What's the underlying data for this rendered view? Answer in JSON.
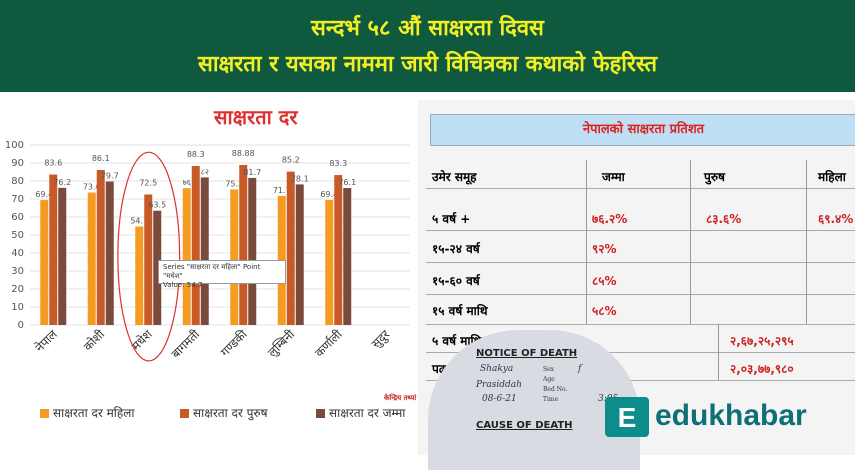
{
  "banner": {
    "line1": "सन्दर्भ ५८ औं साक्षरता दिवस",
    "line2": "साक्षरता र यसका नाममा जारी विचित्रका कथाको फेहरिस्त"
  },
  "chart_data": {
    "type": "bar",
    "title": "साक्षरता  दर",
    "categories": [
      "नेपाल",
      "कोशी",
      "मधेश",
      "बागमती",
      "गण्डकी",
      "लुम्बिनी",
      "कर्णाली",
      "सुदुर"
    ],
    "ylim": [
      0,
      100
    ],
    "yticks": [
      0,
      10,
      20,
      30,
      40,
      50,
      60,
      70,
      80,
      90,
      100
    ],
    "series": [
      {
        "name": "साक्षरता दर महिला",
        "color": "#f59b22",
        "values": [
          69.4,
          73.6,
          54.7,
          76,
          75.3,
          71.7,
          69.4,
          null
        ]
      },
      {
        "name": "साक्षरता दर पुरुष",
        "color": "#c85a28",
        "values": [
          83.6,
          86.1,
          72.5,
          88.3,
          88.88,
          85.2,
          83.3,
          null
        ]
      },
      {
        "name": "साक्षरता दर जम्मा",
        "color": "#7a4a3c",
        "values": [
          76.2,
          79.7,
          63.5,
          82,
          81.7,
          78.1,
          76.1,
          null
        ]
      }
    ],
    "data_labels": [
      [
        "69.4",
        "83.6",
        "76.2"
      ],
      [
        "73.6",
        "86.1",
        "79.7"
      ],
      [
        "54.7",
        "72.5",
        "63.5"
      ],
      [
        "७६",
        "88.3",
        "८२"
      ],
      [
        "75.3",
        "88.88",
        "81.7"
      ],
      [
        "71.7",
        "85.2",
        "78.1"
      ],
      [
        "69.4",
        "83.3",
        "76.1"
      ],
      [
        "",
        "",
        ""
      ]
    ],
    "tooltip": {
      "line1": "Series \"साक्षरता दर महिला\" Point \"मधेश\"",
      "line2": "Value: 54.7"
    },
    "legend": "bottom"
  },
  "table": {
    "title": "नेपालको साक्षरता प्रतिशत",
    "headers": [
      "उमेर समूह",
      "जम्मा",
      "पुरुष",
      "महिला"
    ],
    "rows": [
      [
        "५ वर्ष +",
        "७६.२%",
        "८३.६%",
        "६९.४%"
      ],
      [
        "१५-२४ वर्ष",
        "९२%",
        "",
        ""
      ],
      [
        "१५-६० वर्ष",
        "८५%",
        "",
        ""
      ],
      [
        "१५ वर्ष माथि",
        "५८%",
        "",
        ""
      ]
    ],
    "extra_rows": [
      {
        "label": "५ वर्ष माथि",
        "value": "२,६७,२५,२९५"
      },
      {
        "label": "पढ",
        "value": "२,०३,७७,९८०"
      }
    ]
  },
  "notice": {
    "heading1": "NOTICE OF DEATH",
    "heading2": "CAUSE OF DEATH",
    "small_note": "केन्द्रिय तथ्यां",
    "fields": [
      "Sex",
      "Age",
      "Bed No.",
      "Time"
    ],
    "handwriting": [
      "Shakya",
      "f",
      "Prasiddah",
      "08-6-21",
      "3:05"
    ]
  },
  "logo": {
    "text": "edukhabar",
    "mark": "E"
  }
}
